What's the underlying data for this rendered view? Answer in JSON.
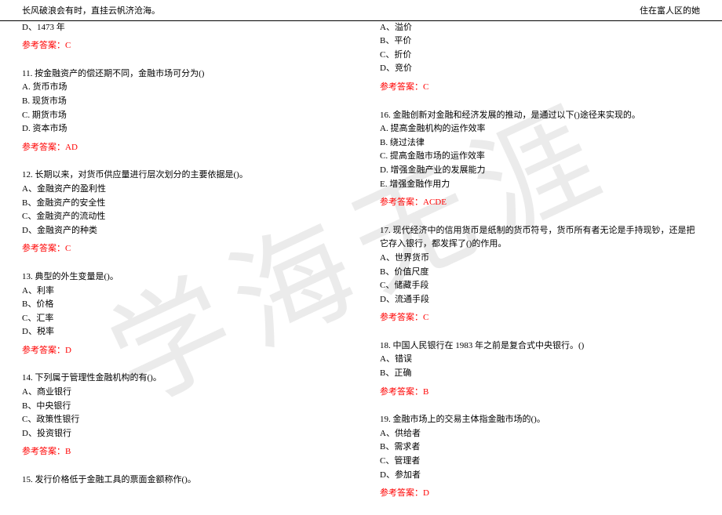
{
  "header": {
    "left": "长风破浪会有时，直挂云帆济沧海。",
    "right": "住在富人区的她"
  },
  "watermark": "学海无涯",
  "leftColumn": {
    "q10_tail": {
      "optionD": "D、1473 年",
      "answer": "参考答案：C"
    },
    "q11": {
      "text": "11. 按金融资产的偿还期不同，金融市场可分为()",
      "optA": "A. 货币市场",
      "optB": "B. 现货市场",
      "optC": "C. 期货市场",
      "optD": "D. 资本市场",
      "answer": "参考答案：AD"
    },
    "q12": {
      "text": "12. 长期以来，对货币供应量进行层次划分的主要依据是()。",
      "optA": "A、金融资产的盈利性",
      "optB": "B、金融资产的安全性",
      "optC": "C、金融资产的流动性",
      "optD": "D、金融资产的种类",
      "answer": "参考答案：C"
    },
    "q13": {
      "text": "13. 典型的外生变量是()。",
      "optA": "A、利率",
      "optB": "B、价格",
      "optC": "C、汇率",
      "optD": "D、税率",
      "answer": "参考答案：D"
    },
    "q14": {
      "text": "14. 下列属于管理性金融机构的有()。",
      "optA": "A、商业银行",
      "optB": "B、中央银行",
      "optC": "C、政策性银行",
      "optD": "D、投资银行",
      "answer": "参考答案：B"
    },
    "q15": {
      "text": "15. 发行价格低于金融工具的票面金额称作()。"
    }
  },
  "rightColumn": {
    "q15_tail": {
      "optA": "A、溢价",
      "optB": "B、平价",
      "optC": "C、折价",
      "optD": "D、竞价",
      "answer": "参考答案：C"
    },
    "q16": {
      "text": "16. 金融创新对金融和经济发展的推动，是通过以下()途径来实现的。",
      "optA": "A. 提高金融机构的运作效率",
      "optB": "B. 绕过法律",
      "optC": "C. 提高金融市场的运作效率",
      "optD": "D. 增强金融产业的发展能力",
      "optE": "E. 增强金融作用力",
      "answer": "参考答案：ACDE"
    },
    "q17": {
      "text": "17. 现代经济中的信用货币是纸制的货币符号，货币所有者无论是手持现钞，还是把它存入银行，都发挥了()的作用。",
      "optA": "A、世界货币",
      "optB": "B、价值尺度",
      "optC": "C、储藏手段",
      "optD": "D、流通手段",
      "answer": "参考答案：C"
    },
    "q18": {
      "text": "18. 中国人民银行在 1983 年之前是复合式中央银行。()",
      "optA": "A、错误",
      "optB": "B、正确",
      "answer": "参考答案：B"
    },
    "q19": {
      "text": "19. 金融市场上的交易主体指金融市场的()。",
      "optA": "A、供给者",
      "optB": "B、需求者",
      "optC": "C、管理者",
      "optD": "D、参加者",
      "answer": "参考答案：D"
    }
  }
}
